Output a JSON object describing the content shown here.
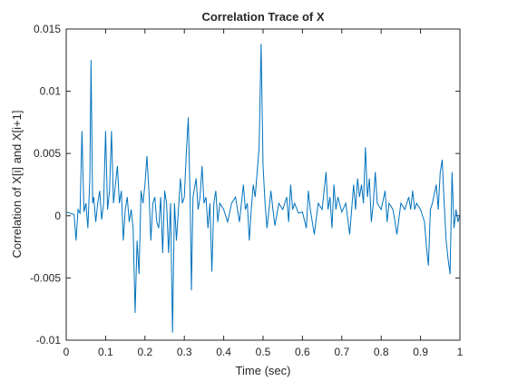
{
  "chart_data": {
    "type": "line",
    "title": "Correlation Trace of X",
    "xlabel": "Time (sec)",
    "ylabel": "Correlation of X[i] and X[i+1]",
    "color": "#0072bd",
    "x": [
      0,
      0.01,
      0.02,
      0.025,
      0.03,
      0.035,
      0.04,
      0.045,
      0.05,
      0.055,
      0.06,
      0.063,
      0.067,
      0.07,
      0.075,
      0.08,
      0.085,
      0.09,
      0.095,
      0.1,
      0.105,
      0.11,
      0.115,
      0.12,
      0.125,
      0.13,
      0.135,
      0.14,
      0.145,
      0.15,
      0.155,
      0.16,
      0.165,
      0.17,
      0.175,
      0.18,
      0.185,
      0.19,
      0.195,
      0.2,
      0.205,
      0.21,
      0.215,
      0.22,
      0.225,
      0.23,
      0.235,
      0.24,
      0.245,
      0.25,
      0.255,
      0.26,
      0.265,
      0.27,
      0.275,
      0.28,
      0.285,
      0.29,
      0.295,
      0.3,
      0.305,
      0.31,
      0.315,
      0.318,
      0.322,
      0.33,
      0.335,
      0.34,
      0.345,
      0.35,
      0.355,
      0.36,
      0.365,
      0.37,
      0.375,
      0.38,
      0.385,
      0.39,
      0.4,
      0.41,
      0.42,
      0.43,
      0.44,
      0.45,
      0.455,
      0.46,
      0.465,
      0.47,
      0.475,
      0.48,
      0.485,
      0.49,
      0.495,
      0.5,
      0.505,
      0.51,
      0.515,
      0.52,
      0.525,
      0.53,
      0.54,
      0.55,
      0.56,
      0.565,
      0.57,
      0.575,
      0.58,
      0.59,
      0.6,
      0.61,
      0.615,
      0.62,
      0.63,
      0.64,
      0.65,
      0.66,
      0.665,
      0.67,
      0.675,
      0.68,
      0.685,
      0.69,
      0.7,
      0.71,
      0.72,
      0.725,
      0.73,
      0.735,
      0.74,
      0.745,
      0.75,
      0.755,
      0.76,
      0.765,
      0.77,
      0.775,
      0.78,
      0.785,
      0.79,
      0.8,
      0.81,
      0.815,
      0.82,
      0.83,
      0.84,
      0.85,
      0.86,
      0.87,
      0.875,
      0.88,
      0.885,
      0.89,
      0.9,
      0.91,
      0.915,
      0.92,
      0.925,
      0.93,
      0.94,
      0.945,
      0.95,
      0.955,
      0.96,
      0.965,
      0.97,
      0.975,
      0.98,
      0.985,
      0.99,
      0.995,
      1
    ],
    "values": [
      0.0003,
      0.0002,
      0.0001,
      -0.002,
      0.0005,
      0.0002,
      0.0068,
      0.0003,
      0.001,
      -0.001,
      0.003,
      0.0125,
      0.001,
      0.0015,
      -0.0005,
      0.001,
      0.002,
      -0.0003,
      0.001,
      0.0068,
      0.0005,
      0.002,
      0.0068,
      0.001,
      0.0025,
      0.004,
      0.001,
      0.002,
      -0.002,
      0.0005,
      0.0015,
      -0.0005,
      0.0005,
      -0.001,
      -0.0078,
      -0.002,
      -0.0047,
      0.002,
      0.001,
      0.0025,
      0.0048,
      0.002,
      -0.002,
      0.001,
      0.0015,
      -0.0005,
      -0.001,
      0.0015,
      -0.003,
      0.002,
      0.001,
      -0.003,
      0.001,
      -0.0094,
      0.001,
      -0.002,
      0.0005,
      0.003,
      0.001,
      0.0015,
      0.005,
      0.0079,
      0.001,
      -0.006,
      0.0015,
      0.003,
      0.0005,
      0.0015,
      0.004,
      0.001,
      0.0015,
      -0.001,
      0.001,
      -0.0045,
      0.001,
      0.002,
      -0.0005,
      0.001,
      0.0005,
      -0.0005,
      0.001,
      0.0015,
      -0.0005,
      0.0025,
      0.0005,
      0.001,
      -0.002,
      0.0005,
      0.0025,
      0.0015,
      0.0035,
      0.0055,
      0.0138,
      0.004,
      0.001,
      -0.001,
      0.0005,
      0.002,
      0.0005,
      -0.0008,
      0.001,
      0.0005,
      0.0015,
      -0.0005,
      0.0025,
      0.0005,
      0.001,
      0.0002,
      0.0003,
      -0.001,
      0.002,
      0.0005,
      -0.0015,
      0.001,
      0.0005,
      0.0035,
      0.0005,
      0.0015,
      -0.001,
      0.0025,
      0.0005,
      0.0015,
      0.0003,
      0.001,
      -0.0015,
      0.0005,
      0.0025,
      0.0005,
      0.003,
      0.0015,
      0.0025,
      0.001,
      0.0055,
      0.0015,
      0.003,
      -0.0005,
      0.001,
      0.0035,
      0.001,
      0.0005,
      0.002,
      -0.0005,
      0.001,
      0.0005,
      -0.0015,
      0.001,
      0.0005,
      0.0015,
      0.0005,
      0.002,
      0.0005,
      0.001,
      0.0005,
      -0.0005,
      -0.0025,
      -0.004,
      0.0005,
      0.001,
      0.0025,
      0.0005,
      0.0035,
      0.0045,
      0.001,
      -0.002,
      -0.0035,
      -0.0047,
      0.0035,
      -0.001,
      0.0005,
      -0.0005,
      0.0001
    ],
    "xlim": [
      0,
      1
    ],
    "xticks": [
      0,
      0.1,
      0.2,
      0.3,
      0.4,
      0.5,
      0.6,
      0.7,
      0.8,
      0.9,
      1
    ],
    "ylim": [
      -0.01,
      0.015
    ],
    "yticks": [
      -0.01,
      -0.005,
      0,
      0.005,
      0.01,
      0.015
    ],
    "grid": false
  }
}
